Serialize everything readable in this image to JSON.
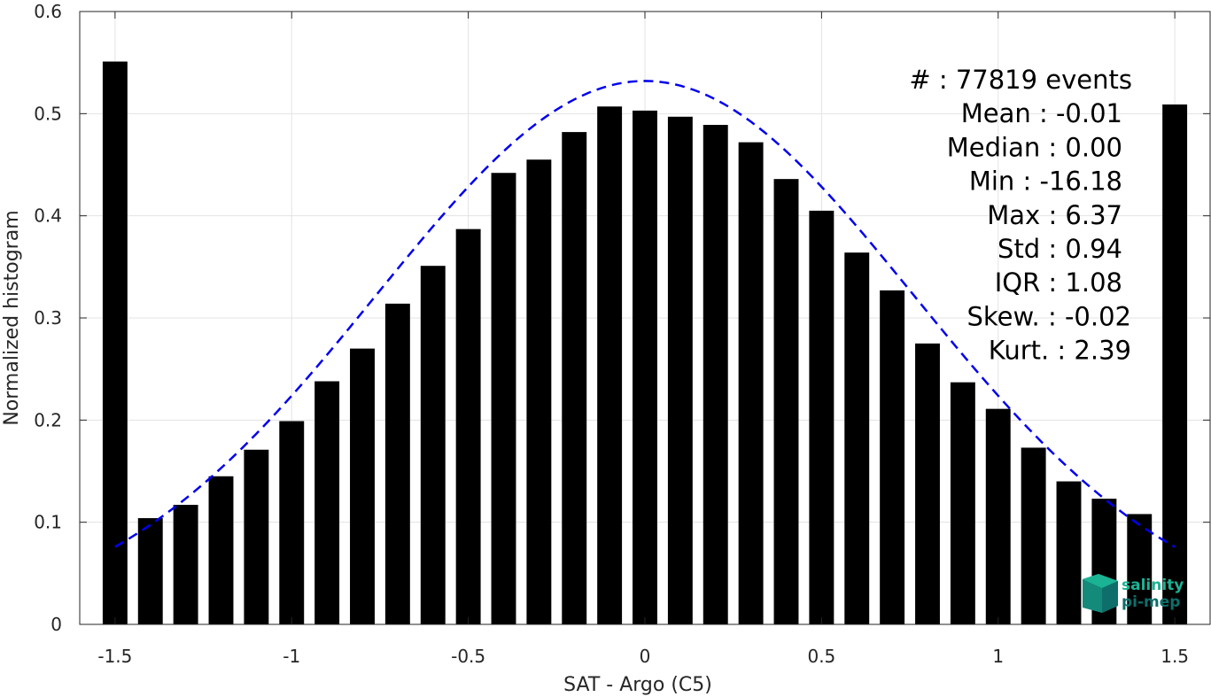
{
  "chart_data": {
    "type": "bar",
    "xlabel": "SAT - Argo (C5)",
    "ylabel": "Normalized histogram",
    "xlim": [
      -1.6,
      1.6
    ],
    "ylim": [
      0,
      0.6
    ],
    "grid": true,
    "x_ticks": [
      -1.5,
      -1,
      -0.5,
      0,
      0.5,
      1,
      1.5
    ],
    "x_tick_labels": [
      "-1.5",
      "-1",
      "-0.5",
      "0",
      "0.5",
      "1",
      "1.5"
    ],
    "y_ticks": [
      0,
      0.1,
      0.2,
      0.3,
      0.4,
      0.5,
      0.6
    ],
    "y_tick_labels": [
      "0",
      "0.1",
      "0.2",
      "0.3",
      "0.4",
      "0.5",
      "0.6"
    ],
    "bar_width": 0.07,
    "bar_color": "#000000",
    "bars": {
      "x": [
        -1.5,
        -1.4,
        -1.3,
        -1.2,
        -1.1,
        -1.0,
        -0.9,
        -0.8,
        -0.7,
        -0.6,
        -0.5,
        -0.4,
        -0.3,
        -0.2,
        -0.1,
        0.0,
        0.1,
        0.2,
        0.3,
        0.4,
        0.5,
        0.6,
        0.7,
        0.8,
        0.9,
        1.0,
        1.1,
        1.2,
        1.3,
        1.4,
        1.5
      ],
      "values": [
        0.551,
        0.104,
        0.117,
        0.145,
        0.171,
        0.199,
        0.238,
        0.27,
        0.314,
        0.351,
        0.387,
        0.442,
        0.455,
        0.482,
        0.507,
        0.503,
        0.497,
        0.489,
        0.472,
        0.436,
        0.405,
        0.364,
        0.327,
        0.275,
        0.237,
        0.211,
        0.173,
        0.14,
        0.123,
        0.108,
        0.509
      ]
    },
    "fit_curve": {
      "style": "dashed",
      "color": "#0000ee",
      "mean": 0.0,
      "peak": 0.532,
      "sigma": 0.76,
      "x_range": [
        -1.5,
        1.5
      ]
    },
    "stats": [
      {
        "label": "#  ",
        "value": ": 77819 events"
      },
      {
        "label": "Mean",
        "value": ": -0.01"
      },
      {
        "label": "Median",
        "value": ": 0.00"
      },
      {
        "label": "Min",
        "value": ": -16.18"
      },
      {
        "label": "Max",
        "value": ": 6.37"
      },
      {
        "label": "Std",
        "value": ": 0.94"
      },
      {
        "label": "IQR",
        "value": ": 1.08"
      },
      {
        "label": "Skew.",
        "value": ": -0.02"
      },
      {
        "label": "Kurt.",
        "value": ": 2.39"
      }
    ]
  },
  "logo": {
    "line1": "salinity",
    "line2": "pi-mep",
    "color1": "#1ab394",
    "color2": "#0e6e6a"
  }
}
